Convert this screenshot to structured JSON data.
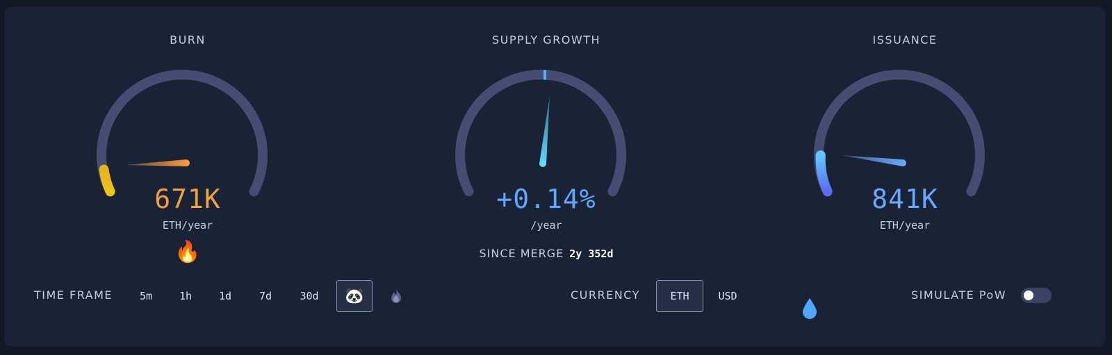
{
  "gauges": {
    "burn": {
      "title": "BURN",
      "value": "671K",
      "unit": "ETH/year",
      "emoji": "🔥",
      "icon": "fire-icon"
    },
    "supply": {
      "title": "SUPPLY GROWTH",
      "value": "+0.14%",
      "unit": "/year",
      "since_label": "SINCE MERGE",
      "since_value": "2y 352d"
    },
    "issuance": {
      "title": "ISSUANCE",
      "value": "841K",
      "unit": "ETH/year",
      "emoji": "💧",
      "icon": "droplet-icon"
    }
  },
  "controls": {
    "time_frame_label": "TIME FRAME",
    "time_frames": [
      "5m",
      "1h",
      "1d",
      "7d",
      "30d"
    ],
    "panda_emoji": "🐼",
    "selected_time_frame_icon": "panda-icon",
    "burn_since_icon": "fire-icon",
    "currency_label": "CURRENCY",
    "currencies": [
      "ETH",
      "USD"
    ],
    "selected_currency": "ETH",
    "simulate_label": "SIMULATE PoW",
    "simulate_on": false
  },
  "colors": {
    "burn": "#f2a03d",
    "supply": "#5fa8ff",
    "issuance": "#6aa8ff",
    "track": "#454e72"
  }
}
